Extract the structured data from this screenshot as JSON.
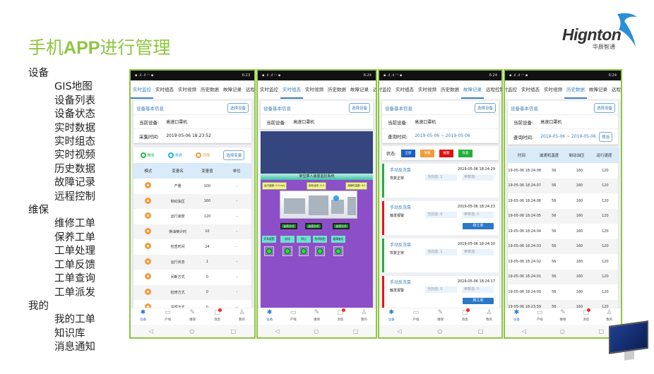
{
  "title": {
    "pre": "手机",
    "bold": "APP",
    "post": "进行管理"
  },
  "logo": {
    "word": "Hignton",
    "sub": "华辰智通"
  },
  "colors": {
    "accent": "#8dc63f",
    "blue": "#3a7fb8",
    "alarm": "#e11111",
    "normal": "#22b03a",
    "warn": "#f39a3b"
  },
  "menu": [
    {
      "cat": "设备",
      "items": [
        "GIS地图",
        "设备列表",
        "设备状态",
        "实时数据",
        "实时组态",
        "实时视频",
        "历史数据",
        "故障记录",
        "远程控制"
      ]
    },
    {
      "cat": "维保",
      "items": [
        "维修工单",
        "保养工单",
        "工单处理",
        "工单反馈",
        "工单查询",
        "工单派发"
      ]
    },
    {
      "cat": "我的",
      "items": [
        "我的工单",
        "知识库",
        "消息通知"
      ]
    }
  ],
  "common": {
    "tabs": [
      "实时监控",
      "实时组态",
      "实时视频",
      "历史数据",
      "故障记录",
      "远程控制"
    ],
    "card_title": "设备基本信息",
    "select_device": "选择设备",
    "current_device_label": "当前设备:",
    "current_device": "高速口罩机",
    "nav": [
      {
        "label": "设备",
        "icon": "gear-icon",
        "glyph": "✱"
      },
      {
        "label": "产线",
        "icon": "monitor-icon",
        "glyph": "▭"
      },
      {
        "label": "维保",
        "icon": "wrench-icon",
        "glyph": "✎"
      },
      {
        "label": "消息",
        "icon": "message-icon",
        "glyph": "▢"
      },
      {
        "label": "我的",
        "icon": "user-icon",
        "glyph": "♙"
      }
    ],
    "android": [
      "◁",
      "○",
      "□"
    ]
  },
  "phones": [
    {
      "time": "6:23",
      "active_tab": 0,
      "collect_label": "采集时间:",
      "collect_time": "2019-05-06 18:23:52",
      "legend": [
        "触发",
        "普通",
        "存储"
      ],
      "select_var": "选择变量",
      "headers": [
        "模式",
        "变量名",
        "变量值",
        "单位"
      ],
      "rows": [
        [
          "产量",
          "100",
          "-"
        ],
        [
          "制动油压",
          "160",
          "-"
        ],
        [
          "运行速度",
          "120",
          "-"
        ],
        [
          "换油倒计时",
          "10",
          "-"
        ],
        [
          "检查时间",
          "24",
          "-"
        ],
        [
          "运行状态",
          "1",
          "-"
        ],
        [
          "间断方式",
          "0",
          "-"
        ],
        [
          "检修方式",
          "0",
          "-"
        ],
        [
          "清理方式",
          "0",
          "-"
        ]
      ]
    },
    {
      "time": "6:24",
      "active_tab": 1,
      "scada_title": "架空乘人装置监控系统",
      "labels": [
        "运行速度: 0.0 m/s",
        "制动油压: 0.0",
        "减速机温度: 0.0"
      ],
      "mode_buttons": [
        "连续方式",
        "连续方式",
        "连续方式"
      ],
      "controls": [
        "开车报警",
        "启动",
        "停止",
        "急停锁定",
        "故障复位"
      ]
    },
    {
      "time": "6:24",
      "active_tab": 4,
      "query_label": "查询时间:",
      "query_range": "2019-05-06 ~ 2019-05-06",
      "status_label": "状态:",
      "status": [
        {
          "label": "全部",
          "color": "#1e5fbf"
        },
        {
          "label": "预警",
          "color": "#f39a3b"
        },
        {
          "label": "报警",
          "color": "#e11111"
        },
        {
          "label": "恢复",
          "color": "#22b03a"
        }
      ],
      "records": [
        {
          "name": "手动反洗泵",
          "time": "2019-05-06 18:24:29",
          "desc": "恢复正常",
          "current": "当前值: 1",
          "param": "参数值:",
          "alarm": false
        },
        {
          "name": "手动反洗泵",
          "time": "2019-05-06 18:24:23",
          "desc": "触发报警",
          "current": "当前值: 0",
          "param": "参数值: 0",
          "alarm": true,
          "action": "转工单"
        },
        {
          "name": "手动反洗泵",
          "time": "2019-05-06 18:24:20",
          "desc": "恢复正常",
          "current": "当前值: 1",
          "param": "参数值:",
          "alarm": false
        },
        {
          "name": "手动反洗泵",
          "time": "2019-05-06 18:24:17",
          "desc": "触发报警",
          "current": "当前值: 0",
          "param": "参数值: 0",
          "alarm": true,
          "action": "转工单"
        }
      ]
    },
    {
      "time": "6:24",
      "active_tab": 3,
      "query_label": "查询时间:",
      "query_range": "2019-05-06 ~ 2019-05-06",
      "filter": "筛选",
      "headers": [
        "时间",
        "减速机温度",
        "制动油压",
        "运行速度"
      ],
      "rows": [
        [
          "2019-05-06 18:24:08",
          "56",
          "160",
          "120"
        ],
        [
          "2019-05-06 18:24:07",
          "56",
          "160",
          "120"
        ],
        [
          "2019-05-06 18:24:06",
          "56",
          "160",
          "120"
        ],
        [
          "2019-05-06 18:24:05",
          "56",
          "160",
          "120"
        ],
        [
          "2019-05-06 18:24:04",
          "56",
          "160",
          "120"
        ],
        [
          "2019-05-06 18:24:03",
          "56",
          "160",
          "120"
        ],
        [
          "2019-05-06 18:24:02",
          "56",
          "160",
          "120"
        ],
        [
          "2019-05-06 18:24:01",
          "56",
          "160",
          "120"
        ],
        [
          "2019-05-06 18:24:00",
          "56",
          "160",
          "120"
        ],
        [
          "2019-05-06 18:23:59",
          "56",
          "160",
          "120"
        ]
      ]
    }
  ]
}
